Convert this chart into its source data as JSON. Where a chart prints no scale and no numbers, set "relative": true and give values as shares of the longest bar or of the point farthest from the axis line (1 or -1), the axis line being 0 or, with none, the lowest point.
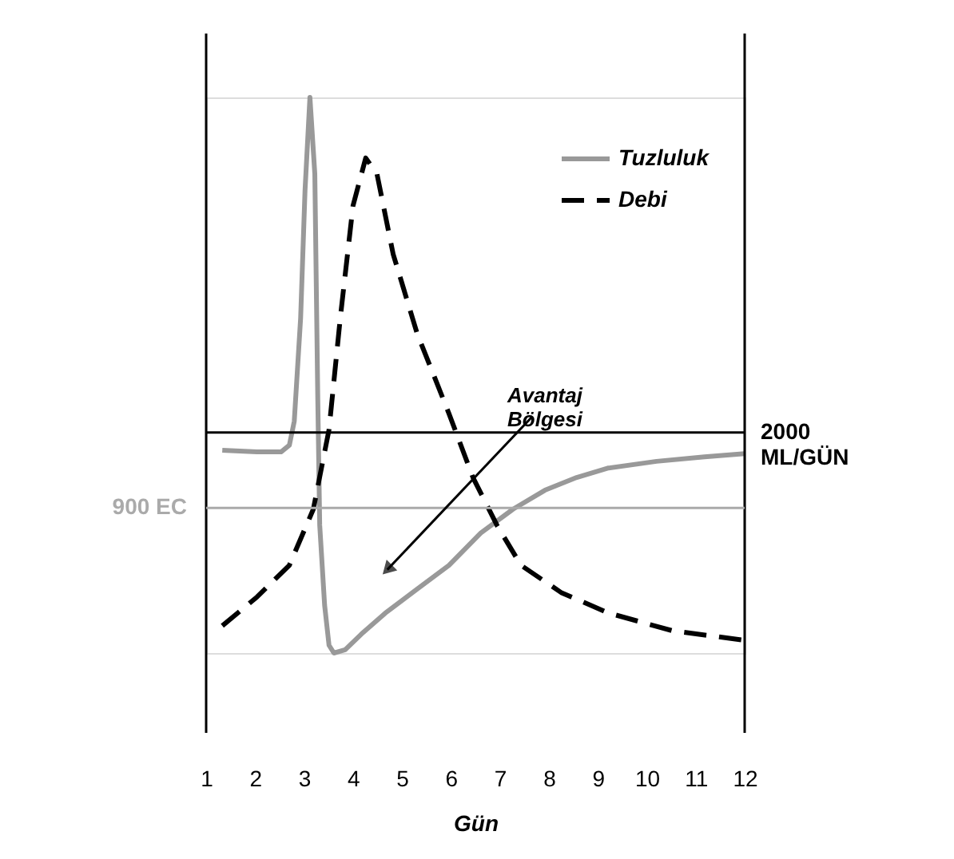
{
  "chart_data": {
    "type": "line",
    "relative": true,
    "xlabel": "Gün",
    "xlim": [
      1,
      12
    ],
    "xticks": [
      1,
      2,
      3,
      4,
      5,
      6,
      7,
      8,
      9,
      10,
      11,
      12
    ],
    "legend": "top right",
    "grid": false,
    "series": [
      {
        "name": "Tuzluluk",
        "color": "#999999",
        "line_style": "solid",
        "x": [
          1.33,
          2.04,
          2.53,
          2.7,
          2.8,
          2.93,
          3.02,
          3.12,
          3.22,
          3.28,
          3.32,
          3.42,
          3.51,
          3.61,
          3.84,
          4.17,
          4.66,
          5.31,
          5.96,
          6.61,
          7.27,
          7.92,
          8.57,
          9.22,
          10.2,
          11.18,
          12.0
        ],
        "values": [
          0.365,
          0.362,
          0.362,
          0.374,
          0.417,
          0.603,
          0.833,
          1.0,
          0.862,
          0.46,
          0.23,
          0.086,
          0.014,
          0.0,
          0.006,
          0.034,
          0.072,
          0.115,
          0.158,
          0.216,
          0.259,
          0.293,
          0.316,
          0.333,
          0.345,
          0.353,
          0.359
        ]
      },
      {
        "name": "Debi",
        "color": "#000000",
        "line_style": "dashed",
        "x": [
          1.33,
          2.04,
          2.7,
          3.19,
          3.51,
          3.74,
          4.0,
          4.26,
          4.49,
          4.82,
          5.31,
          5.96,
          6.45,
          6.94,
          7.43,
          8.25,
          9.22,
          10.53,
          12.0
        ],
        "values": [
          0.049,
          0.101,
          0.158,
          0.259,
          0.402,
          0.603,
          0.805,
          0.891,
          0.862,
          0.718,
          0.575,
          0.431,
          0.316,
          0.23,
          0.158,
          0.109,
          0.072,
          0.04,
          0.023
        ]
      }
    ],
    "ref_lines": [
      {
        "axis": "y",
        "value": 0.397,
        "label": "2000\nML/GÜN",
        "color": "#000000"
      },
      {
        "axis": "y",
        "value": 0.261,
        "label": "900 EC",
        "color": "#aaaaaa"
      }
    ],
    "annotations": [
      {
        "text": "Avantaj\nBölgesi",
        "x": 4.7,
        "y": 0.15
      }
    ]
  }
}
